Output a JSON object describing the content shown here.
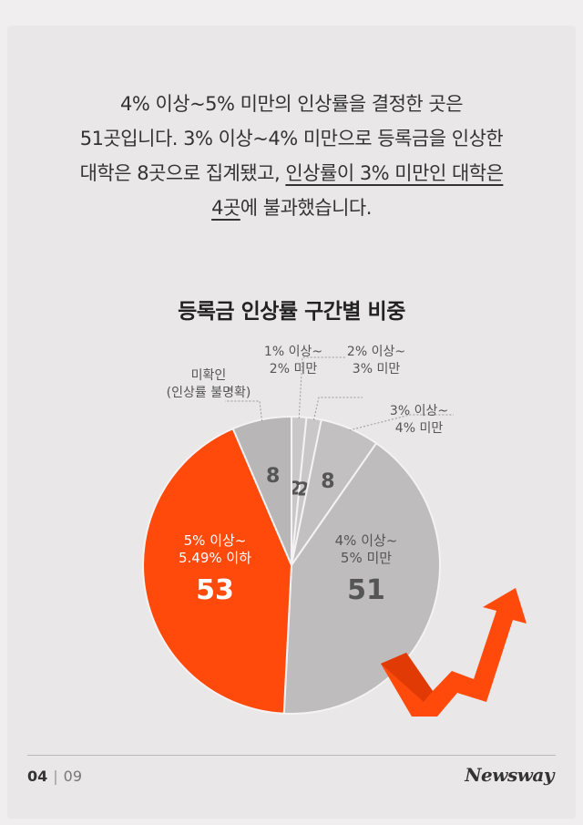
{
  "paragraph": {
    "line1": "4% 이상~5% 미만의 인상률을 결정한 곳은",
    "line2": "51곳입니다. 3% 이상~4% 미만으로 등록금을 인상한",
    "line3a": "대학은 8곳으로 집계됐고, ",
    "line3b": "인상률이 3% 미만인 대학은",
    "line4a": "4곳",
    "line4b": "에 불과했습니다."
  },
  "chart_data": {
    "type": "pie",
    "title": "등록금 인상률 구간별 비중",
    "slices": [
      {
        "label_lines": [
          "1% 이상~",
          "2% 미만"
        ],
        "value": 2,
        "color": "#c9c7c7"
      },
      {
        "label_lines": [
          "2% 이상~",
          "3% 미만"
        ],
        "value": 2,
        "color": "#c9c7c7"
      },
      {
        "label_lines": [
          "3% 이상~",
          "4% 미만"
        ],
        "value": 8,
        "color": "#c2c0c0"
      },
      {
        "label_lines": [
          "4% 이상~",
          "5% 미만"
        ],
        "value": 51,
        "color": "#bebcbc"
      },
      {
        "label_lines": [
          "5% 이상~",
          "5.49% 이하"
        ],
        "value": 53,
        "color": "#ff4a0c"
      },
      {
        "label_lines": [
          "미확인",
          "(인상률 불명확)"
        ],
        "value": 8,
        "color": "#b8b6b6"
      }
    ]
  },
  "footer": {
    "page": "04",
    "separator": "|",
    "total": "09",
    "logo": "Newsway"
  }
}
